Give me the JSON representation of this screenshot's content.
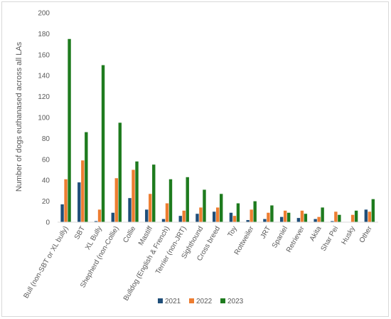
{
  "chart_data": {
    "type": "bar",
    "title": "",
    "xlabel": "",
    "ylabel": "Number of dogs euthanased across all LAs",
    "ylim": [
      0,
      200
    ],
    "yticks": [
      0,
      20,
      40,
      60,
      80,
      100,
      120,
      140,
      160,
      180,
      200
    ],
    "grid": false,
    "legend_position": "bottom",
    "categories": [
      "Bull (non-SBT or XL bully)",
      "SBT",
      "XL Bully",
      "Shepherd (non-Collie)",
      "Collie",
      "Mastiff",
      "Bulldog (English & French)",
      "Terrier (non-JRT)",
      "Sighthound",
      "Cross breed",
      "Toy",
      "Rottweiler",
      "JRT",
      "Spaniel",
      "Retriever",
      "Akita",
      "Shar Pei",
      "Husky",
      "Other"
    ],
    "series": [
      {
        "name": "2021",
        "color": "#1f4e79",
        "values": [
          17,
          38,
          1,
          9,
          23,
          12,
          3,
          6,
          8,
          10,
          9,
          2,
          3,
          5,
          4,
          3,
          1,
          0,
          12
        ]
      },
      {
        "name": "2022",
        "color": "#ed7d31",
        "values": [
          41,
          59,
          12,
          42,
          50,
          27,
          18,
          11,
          14,
          14,
          6,
          12,
          9,
          11,
          11,
          5,
          10,
          7,
          10
        ]
      },
      {
        "name": "2023",
        "color": "#1e7b1e",
        "values": [
          175,
          86,
          150,
          95,
          58,
          55,
          41,
          43,
          31,
          27,
          18,
          20,
          16,
          9,
          8,
          14,
          7,
          11,
          22
        ]
      }
    ]
  }
}
